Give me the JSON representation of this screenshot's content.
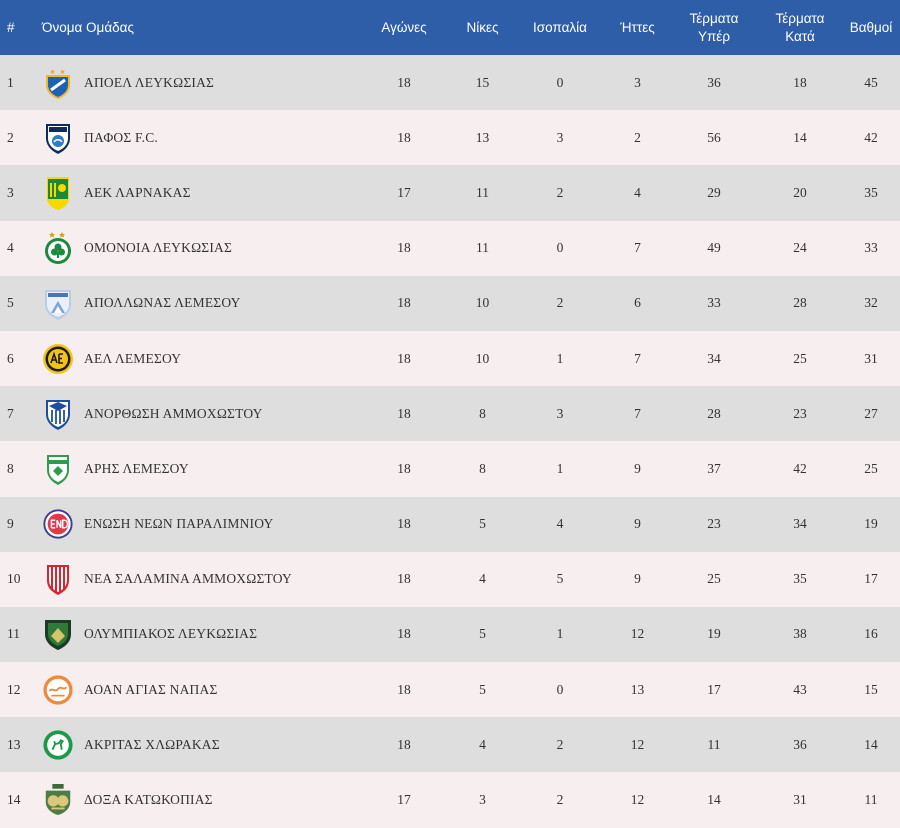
{
  "header": {
    "position": "#",
    "team": "Όνομα Ομάδας",
    "played": "Αγώνες",
    "wins": "Νίκες",
    "draws": "Ισοπαλία",
    "losses": "Ήττες",
    "goals_for": "Τέρματα Υπέρ",
    "goals_against": "Τέρματα Κατά",
    "points": "Βαθμοί"
  },
  "colors": {
    "header_bg": "#2f5ea8",
    "row_odd": "#dedede",
    "row_even": "#f7efef"
  },
  "rows": [
    {
      "pos": "1",
      "team": "ΑΠΟΕΛ ΛΕΥΚΩΣΙΑΣ",
      "played": "18",
      "wins": "15",
      "draws": "0",
      "losses": "3",
      "gf": "36",
      "ga": "18",
      "pts": "45",
      "crest": "apoel-crest-icon"
    },
    {
      "pos": "2",
      "team": "ΠΑΦΟΣ F.C.",
      "played": "18",
      "wins": "13",
      "draws": "3",
      "losses": "2",
      "gf": "56",
      "ga": "14",
      "pts": "42",
      "crest": "pafos-crest-icon"
    },
    {
      "pos": "3",
      "team": "ΑΕΚ ΛΑΡΝΑΚΑΣ",
      "played": "17",
      "wins": "11",
      "draws": "2",
      "losses": "4",
      "gf": "29",
      "ga": "20",
      "pts": "35",
      "crest": "aek-crest-icon"
    },
    {
      "pos": "4",
      "team": "ΟΜΟΝΟΙΑ ΛΕΥΚΩΣΙΑΣ",
      "played": "18",
      "wins": "11",
      "draws": "0",
      "losses": "7",
      "gf": "49",
      "ga": "24",
      "pts": "33",
      "crest": "omonoia-crest-icon"
    },
    {
      "pos": "5",
      "team": "ΑΠΟΛΛΩΝΑΣ ΛΕΜΕΣΟΥ",
      "played": "18",
      "wins": "10",
      "draws": "2",
      "losses": "6",
      "gf": "33",
      "ga": "28",
      "pts": "32",
      "crest": "apollon-crest-icon"
    },
    {
      "pos": "6",
      "team": "ΑΕΛ ΛΕΜΕΣΟΥ",
      "played": "18",
      "wins": "10",
      "draws": "1",
      "losses": "7",
      "gf": "34",
      "ga": "25",
      "pts": "31",
      "crest": "ael-crest-icon"
    },
    {
      "pos": "7",
      "team": "ΑΝΟΡΘΩΣΗ ΑΜΜΟΧΩΣΤΟΥ",
      "played": "18",
      "wins": "8",
      "draws": "3",
      "losses": "7",
      "gf": "28",
      "ga": "23",
      "pts": "27",
      "crest": "anorthosis-crest-icon"
    },
    {
      "pos": "8",
      "team": "ΑΡΗΣ ΛΕΜΕΣΟΥ",
      "played": "18",
      "wins": "8",
      "draws": "1",
      "losses": "9",
      "gf": "37",
      "ga": "42",
      "pts": "25",
      "crest": "aris-crest-icon"
    },
    {
      "pos": "9",
      "team": "ΕΝΩΣΗ ΝΕΩΝ ΠΑΡΑΛΙΜΝΙΟΥ",
      "played": "18",
      "wins": "5",
      "draws": "4",
      "losses": "9",
      "gf": "23",
      "ga": "34",
      "pts": "19",
      "crest": "enp-crest-icon"
    },
    {
      "pos": "10",
      "team": "ΝΕΑ ΣΑΛΑΜΙΝΑ ΑΜΜΟΧΩΣΤΟΥ",
      "played": "18",
      "wins": "4",
      "draws": "5",
      "losses": "9",
      "gf": "25",
      "ga": "35",
      "pts": "17",
      "crest": "nea-salamina-crest-icon"
    },
    {
      "pos": "11",
      "team": "ΟΛΥΜΠΙΑΚΟΣ ΛΕΥΚΩΣΙΑΣ",
      "played": "18",
      "wins": "5",
      "draws": "1",
      "losses": "12",
      "gf": "19",
      "ga": "38",
      "pts": "16",
      "crest": "olympiakos-crest-icon"
    },
    {
      "pos": "12",
      "team": "ΑΟΑΝ ΑΓΙΑΣ ΝΑΠΑΣ",
      "played": "18",
      "wins": "5",
      "draws": "0",
      "losses": "13",
      "gf": "17",
      "ga": "43",
      "pts": "15",
      "crest": "aoan-crest-icon"
    },
    {
      "pos": "13",
      "team": "ΑΚΡΙΤΑΣ ΧΛΩΡΑΚΑΣ",
      "played": "18",
      "wins": "4",
      "draws": "2",
      "losses": "12",
      "gf": "11",
      "ga": "36",
      "pts": "14",
      "crest": "akritas-crest-icon"
    },
    {
      "pos": "14",
      "team": "ΔΟΞΑ ΚΑΤΩΚΟΠΙΑΣ",
      "played": "17",
      "wins": "3",
      "draws": "2",
      "losses": "12",
      "gf": "14",
      "ga": "31",
      "pts": "11",
      "crest": "doxa-crest-icon"
    }
  ]
}
